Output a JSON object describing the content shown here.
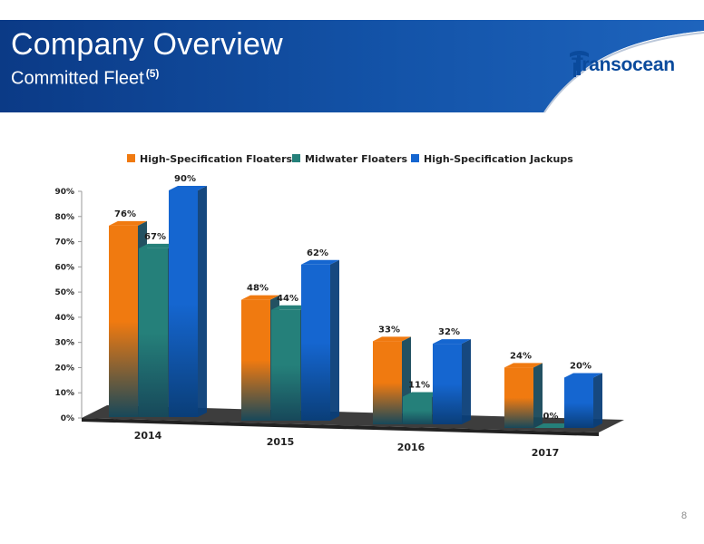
{
  "header": {
    "title": "Company Overview",
    "subtitle": "Committed Fleet",
    "footnote_ref": "(5)",
    "logo_text": "Transocean"
  },
  "page_number": "8",
  "colors": {
    "header_blue": "#0b3d8c",
    "high_spec_floaters": "#f07a10",
    "midwater_floaters": "#25807a",
    "high_spec_jackups": "#1566d0"
  },
  "chart_data": {
    "type": "bar",
    "categories": [
      "2014",
      "2015",
      "2016",
      "2017"
    ],
    "series": [
      {
        "name": "High-Specification Floaters",
        "values": [
          76,
          48,
          33,
          24
        ],
        "labels": [
          "76%",
          "48%",
          "33%",
          "24%"
        ]
      },
      {
        "name": "Midwater Floaters",
        "values": [
          67,
          44,
          11,
          0
        ],
        "labels": [
          "67%",
          "44%",
          "11%",
          "0%"
        ]
      },
      {
        "name": "High-Specification Jackups",
        "values": [
          90,
          62,
          32,
          20
        ],
        "labels": [
          "90%",
          "62%",
          "32%",
          "20%"
        ]
      }
    ],
    "yticks": [
      "0%",
      "10%",
      "20%",
      "30%",
      "40%",
      "50%",
      "60%",
      "70%",
      "80%",
      "90%"
    ],
    "ylim": [
      0,
      90
    ],
    "legend_position": "top",
    "style": "3d-clustered",
    "grid": false
  }
}
